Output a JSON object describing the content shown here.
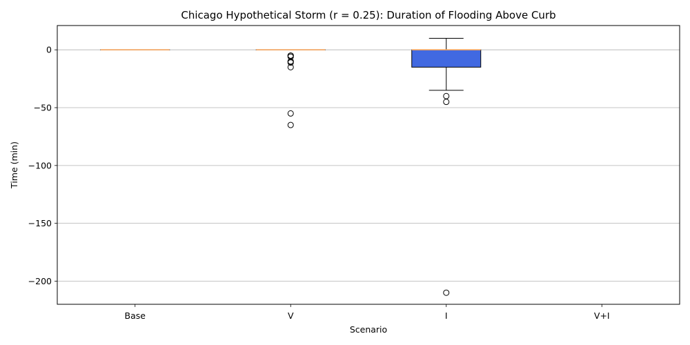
{
  "chart_data": {
    "type": "box",
    "title": "Chicago Hypothetical Storm (r = 0.25): Duration of Flooding Above Curb",
    "xlabel": "Scenario",
    "ylabel": "Time (min)",
    "ylim": [
      -220,
      21
    ],
    "yticks": [
      0,
      -50,
      -100,
      -150,
      -200
    ],
    "ytick_labels": [
      "0",
      "−50",
      "−100",
      "−150",
      "−200"
    ],
    "grid": "horizontal",
    "colors": {
      "box_fill": "#4169e1",
      "median": "#f0a05a",
      "edge": "#000000",
      "grid": "#b0b0b0"
    },
    "categories": [
      "Base",
      "V",
      "I",
      "V+I"
    ],
    "boxes": [
      {
        "label": "Base",
        "q1": 0,
        "median": 0,
        "q3": 0,
        "whisker_low": 0,
        "whisker_high": 0,
        "outliers": []
      },
      {
        "label": "V",
        "q1": 0,
        "median": 0,
        "q3": 0,
        "whisker_low": 0,
        "whisker_high": 0,
        "outliers": [
          -5,
          -5,
          -6,
          -10,
          -10,
          -11,
          -15,
          -55,
          -65
        ]
      },
      {
        "label": "I",
        "q1": -15,
        "median": 0,
        "q3": 0,
        "whisker_low": -35,
        "whisker_high": 10,
        "outliers": [
          -40,
          -45,
          -210
        ]
      },
      {
        "label": "V+I",
        "q1": null,
        "median": null,
        "q3": null,
        "whisker_low": null,
        "whisker_high": null,
        "outliers": []
      }
    ]
  }
}
